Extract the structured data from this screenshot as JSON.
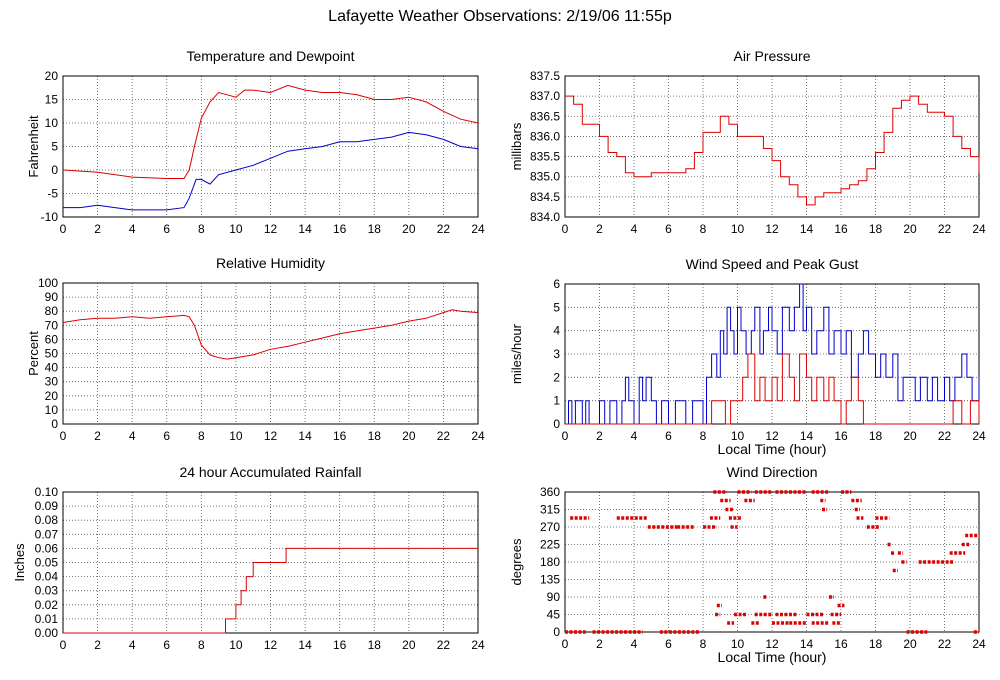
{
  "page": {
    "title": "Lafayette Weather Observations: 2/19/06 11:55p"
  },
  "colors": {
    "red": "#dd0000",
    "blue": "#0000cc",
    "grid": "#555555"
  },
  "chart_data": [
    {
      "id": "temperature",
      "type": "line",
      "title": "Temperature and Dewpoint",
      "ylabel": "Fahrenheit",
      "xlabel": "",
      "xlim": [
        0,
        24
      ],
      "ylim": [
        -10,
        20
      ],
      "yticks": [
        "-10",
        "-5",
        "0",
        "5",
        "10",
        "15",
        "20"
      ],
      "xticks": [
        "0",
        "2",
        "4",
        "6",
        "8",
        "10",
        "12",
        "14",
        "16",
        "18",
        "20",
        "22",
        "24"
      ],
      "grid": true,
      "series": [
        {
          "color": "red",
          "x": [
            0,
            2,
            4,
            6,
            7,
            7.3,
            7.6,
            8,
            8.5,
            9,
            9.5,
            10,
            10.5,
            11,
            12,
            13,
            14,
            15,
            16,
            17,
            18,
            19,
            20,
            21,
            22,
            23,
            24
          ],
          "y": [
            0,
            -0.5,
            -1.5,
            -1.8,
            -1.8,
            0,
            5,
            11,
            14.5,
            16.5,
            16,
            15.5,
            17,
            17,
            16.5,
            18,
            17,
            16.5,
            16.5,
            16,
            15,
            15,
            15.5,
            14.5,
            12.5,
            10.8,
            10
          ]
        },
        {
          "color": "blue",
          "x": [
            0,
            1,
            2,
            3,
            4,
            5,
            6,
            7,
            7.3,
            7.7,
            8,
            8.5,
            9,
            10,
            11,
            12,
            13,
            14,
            15,
            16,
            17,
            18,
            19,
            20,
            21,
            22,
            23,
            24
          ],
          "y": [
            -8,
            -8,
            -7.5,
            -8,
            -8.5,
            -8.5,
            -8.5,
            -8,
            -6,
            -2,
            -2,
            -3,
            -1,
            0,
            1,
            2.5,
            4,
            4.5,
            5,
            6,
            6,
            6.5,
            7,
            8,
            7.5,
            6.5,
            5,
            4.5
          ]
        }
      ]
    },
    {
      "id": "pressure",
      "type": "line",
      "title": "Air Pressure",
      "ylabel": "millibars",
      "xlabel": "",
      "xlim": [
        0,
        24
      ],
      "ylim": [
        834.0,
        837.5
      ],
      "yticks": [
        "834.0",
        "834.5",
        "835.0",
        "835.5",
        "836.0",
        "836.5",
        "837.0",
        "837.5"
      ],
      "xticks": [
        "0",
        "2",
        "4",
        "6",
        "8",
        "10",
        "12",
        "14",
        "16",
        "18",
        "20",
        "22",
        "24"
      ],
      "grid": true,
      "series": [
        {
          "color": "red",
          "x": [
            0,
            0.5,
            1,
            2,
            2.5,
            3,
            3.5,
            4,
            5,
            6,
            7,
            7.5,
            8,
            8.5,
            9,
            9.5,
            10,
            11,
            11.5,
            12,
            12.5,
            13,
            13.5,
            14,
            14.5,
            15,
            16,
            16.5,
            17,
            17.5,
            18,
            18.5,
            19,
            19.5,
            20,
            20.5,
            21,
            22,
            22.5,
            23,
            23.5,
            24
          ],
          "y": [
            837.0,
            836.8,
            836.3,
            836.0,
            835.6,
            835.5,
            835.1,
            835.0,
            835.1,
            835.1,
            835.2,
            835.6,
            836.1,
            836.1,
            836.5,
            836.3,
            836.0,
            836.0,
            835.7,
            835.4,
            835.0,
            834.8,
            834.5,
            834.3,
            834.5,
            834.6,
            834.7,
            834.8,
            834.9,
            835.2,
            835.6,
            836.1,
            836.7,
            836.9,
            837.0,
            836.8,
            836.6,
            836.5,
            836.0,
            835.7,
            835.5,
            835.1
          ]
        }
      ]
    },
    {
      "id": "humidity",
      "type": "line",
      "title": "Relative Humidity",
      "ylabel": "Percent",
      "xlabel": "",
      "xlim": [
        0,
        24
      ],
      "ylim": [
        0,
        100
      ],
      "yticks": [
        "0",
        "10",
        "20",
        "30",
        "40",
        "50",
        "60",
        "70",
        "80",
        "90",
        "100"
      ],
      "xticks": [
        "0",
        "2",
        "4",
        "6",
        "8",
        "10",
        "12",
        "14",
        "16",
        "18",
        "20",
        "22",
        "24"
      ],
      "grid": true,
      "series": [
        {
          "color": "red",
          "x": [
            0,
            1,
            2,
            3,
            4,
            5,
            6,
            7,
            7.3,
            7.6,
            8,
            8.5,
            9,
            9.5,
            10,
            11,
            12,
            13,
            14,
            15,
            16,
            17,
            18,
            19,
            20,
            21,
            22,
            22.5,
            23,
            24
          ],
          "y": [
            72,
            74,
            75,
            75,
            76,
            75,
            76,
            77,
            76,
            70,
            56,
            49,
            47,
            46,
            47,
            49,
            53,
            55,
            58,
            61,
            64,
            66,
            68,
            70,
            73,
            75,
            79,
            81,
            80,
            79
          ]
        }
      ]
    },
    {
      "id": "wind",
      "type": "line",
      "title": "Wind Speed and Peak Gust",
      "ylabel": "miles/hour",
      "xlabel": "Local Time (hour)",
      "xlim": [
        0,
        24
      ],
      "ylim": [
        0,
        6
      ],
      "yticks": [
        "0",
        "1",
        "2",
        "3",
        "4",
        "5",
        "6"
      ],
      "xticks": [
        "0",
        "2",
        "4",
        "6",
        "8",
        "10",
        "12",
        "14",
        "16",
        "18",
        "20",
        "22",
        "24"
      ],
      "grid": true,
      "series": [
        {
          "color": "blue",
          "x": [
            0,
            0.2,
            0.4,
            0.6,
            0.8,
            1.0,
            1.2,
            1.4,
            2.0,
            2.3,
            2.6,
            3.0,
            3.3,
            3.5,
            3.7,
            4.0,
            4.3,
            4.5,
            4.7,
            5.0,
            5.3,
            5.6,
            6.0,
            6.4,
            7.0,
            7.4,
            8.0,
            8.2,
            8.5,
            8.8,
            9.0,
            9.2,
            9.4,
            9.6,
            9.8,
            10.0,
            10.2,
            10.5,
            10.8,
            11.0,
            11.3,
            11.5,
            11.8,
            12.0,
            12.3,
            12.6,
            13.0,
            13.3,
            13.6,
            13.8,
            14.0,
            14.3,
            14.6,
            15.0,
            15.3,
            15.6,
            16.0,
            16.3,
            16.6,
            17.0,
            17.3,
            17.6,
            18.0,
            18.3,
            18.6,
            19.0,
            19.3,
            19.6,
            20.0,
            20.3,
            20.6,
            21.0,
            21.3,
            21.6,
            22.0,
            22.3,
            22.6,
            23.0,
            23.3,
            23.6,
            24.0
          ],
          "y": [
            0,
            1,
            0,
            1,
            1,
            0,
            1,
            0,
            1,
            0,
            1,
            0,
            1,
            2,
            1,
            0,
            2,
            1,
            2,
            1,
            0,
            1,
            0,
            1,
            0,
            1,
            0,
            2,
            3,
            2,
            4,
            3,
            5,
            4,
            3,
            5,
            4,
            3,
            4,
            5,
            3,
            4,
            5,
            4,
            3,
            5,
            4,
            5,
            6,
            4,
            5,
            3,
            4,
            5,
            3,
            4,
            3,
            4,
            2,
            3,
            4,
            3,
            2,
            3,
            2,
            3,
            1,
            2,
            2,
            1,
            2,
            1,
            2,
            1,
            2,
            1,
            2,
            3,
            2,
            1,
            2
          ]
        },
        {
          "color": "red",
          "x": [
            0,
            8.0,
            8.5,
            9.0,
            9.3,
            9.6,
            10.0,
            10.3,
            10.6,
            11.0,
            11.3,
            11.6,
            12.0,
            12.3,
            12.6,
            13.0,
            13.3,
            13.6,
            14.0,
            14.3,
            14.6,
            15.0,
            15.3,
            15.6,
            16.0,
            16.3,
            16.6,
            17.0,
            17.3,
            18.0,
            22.0,
            22.5,
            23.0,
            23.5,
            24.0
          ],
          "y": [
            0,
            0,
            1,
            1,
            0,
            1,
            1,
            2,
            3,
            1,
            2,
            1,
            2,
            1,
            3,
            2,
            1,
            3,
            2,
            1,
            2,
            1,
            2,
            1,
            0,
            1,
            2,
            1,
            0,
            0,
            0,
            1,
            0,
            1,
            0
          ]
        }
      ]
    },
    {
      "id": "rainfall",
      "type": "line",
      "title": "24 hour Accumulated Rainfall",
      "ylabel": "Inches",
      "xlabel": "",
      "xlim": [
        0,
        24
      ],
      "ylim": [
        0,
        0.1
      ],
      "yticks": [
        "0.00",
        "0.01",
        "0.02",
        "0.03",
        "0.04",
        "0.05",
        "0.06",
        "0.07",
        "0.08",
        "0.09",
        "0.10"
      ],
      "xticks": [
        "0",
        "2",
        "4",
        "6",
        "8",
        "10",
        "12",
        "14",
        "16",
        "18",
        "20",
        "22",
        "24"
      ],
      "grid": true,
      "series": [
        {
          "color": "red",
          "x": [
            0,
            9.4,
            9.4,
            10.0,
            10.0,
            10.3,
            10.3,
            10.6,
            10.6,
            11.0,
            11.0,
            11.3,
            11.3,
            12.9,
            12.9,
            24
          ],
          "y": [
            0,
            0,
            0.01,
            0.01,
            0.02,
            0.02,
            0.03,
            0.03,
            0.04,
            0.04,
            0.05,
            0.05,
            0.05,
            0.05,
            0.06,
            0.06
          ]
        }
      ]
    },
    {
      "id": "direction",
      "type": "scatter",
      "title": "Wind Direction",
      "ylabel": "degrees",
      "xlabel": "Local Time (hour)",
      "xlim": [
        0,
        24
      ],
      "ylim": [
        0,
        360
      ],
      "yticks": [
        "0",
        "45",
        "90",
        "135",
        "180",
        "225",
        "270",
        "315",
        "360"
      ],
      "xticks": [
        "0",
        "2",
        "4",
        "6",
        "8",
        "10",
        "12",
        "14",
        "16",
        "18",
        "20",
        "22",
        "24"
      ],
      "grid": true,
      "series": [
        {
          "color": "red",
          "segments": [
            [
              0.0,
              1.2,
              0
            ],
            [
              0.3,
              1.4,
              293
            ],
            [
              1.6,
              4.5,
              0
            ],
            [
              3.0,
              4.8,
              293
            ],
            [
              4.8,
              6.5,
              270
            ],
            [
              5.5,
              7.8,
              0
            ],
            [
              6.5,
              7.5,
              270
            ],
            [
              8.0,
              8.8,
              270
            ],
            [
              8.4,
              9.0,
              293
            ],
            [
              8.6,
              9.4,
              360
            ],
            [
              9.0,
              9.6,
              338
            ],
            [
              9.3,
              9.8,
              315
            ],
            [
              9.5,
              10.2,
              293
            ],
            [
              9.6,
              10.0,
              270
            ],
            [
              10.0,
              10.8,
              360
            ],
            [
              10.4,
              11.0,
              338
            ],
            [
              11.0,
              12.0,
              360
            ],
            [
              12.2,
              14.0,
              360
            ],
            [
              14.3,
              15.3,
              360
            ],
            [
              14.8,
              15.1,
              338
            ],
            [
              14.9,
              15.2,
              315
            ],
            [
              16.0,
              16.6,
              360
            ],
            [
              16.6,
              17.2,
              338
            ],
            [
              16.8,
              17.1,
              315
            ],
            [
              16.9,
              17.3,
              293
            ],
            [
              17.5,
              18.2,
              270
            ],
            [
              18.0,
              18.8,
              293
            ],
            [
              18.7,
              18.9,
              225
            ],
            [
              18.9,
              19.1,
              203
            ],
            [
              19.0,
              19.3,
              158
            ],
            [
              19.3,
              19.6,
              203
            ],
            [
              19.5,
              19.8,
              180
            ],
            [
              19.8,
              21.0,
              0
            ],
            [
              20.5,
              22.5,
              180
            ],
            [
              22.3,
              23.2,
              203
            ],
            [
              23.0,
              23.5,
              225
            ],
            [
              23.2,
              24.0,
              248
            ],
            [
              8.7,
              9.0,
              45
            ],
            [
              8.8,
              9.1,
              68
            ],
            [
              9.4,
              9.8,
              23
            ],
            [
              9.8,
              10.5,
              45
            ],
            [
              10.8,
              11.3,
              23
            ],
            [
              11.0,
              12.0,
              45
            ],
            [
              11.5,
              11.7,
              90
            ],
            [
              12.0,
              13.0,
              23
            ],
            [
              12.2,
              13.5,
              45
            ],
            [
              13.0,
              14.0,
              23
            ],
            [
              14.0,
              15.0,
              45
            ],
            [
              14.3,
              15.3,
              23
            ],
            [
              15.3,
              15.6,
              90
            ],
            [
              15.4,
              16.0,
              45
            ],
            [
              15.8,
              16.2,
              68
            ],
            [
              15.5,
              16.0,
              23
            ],
            [
              23.7,
              24.0,
              0
            ]
          ]
        }
      ]
    }
  ]
}
